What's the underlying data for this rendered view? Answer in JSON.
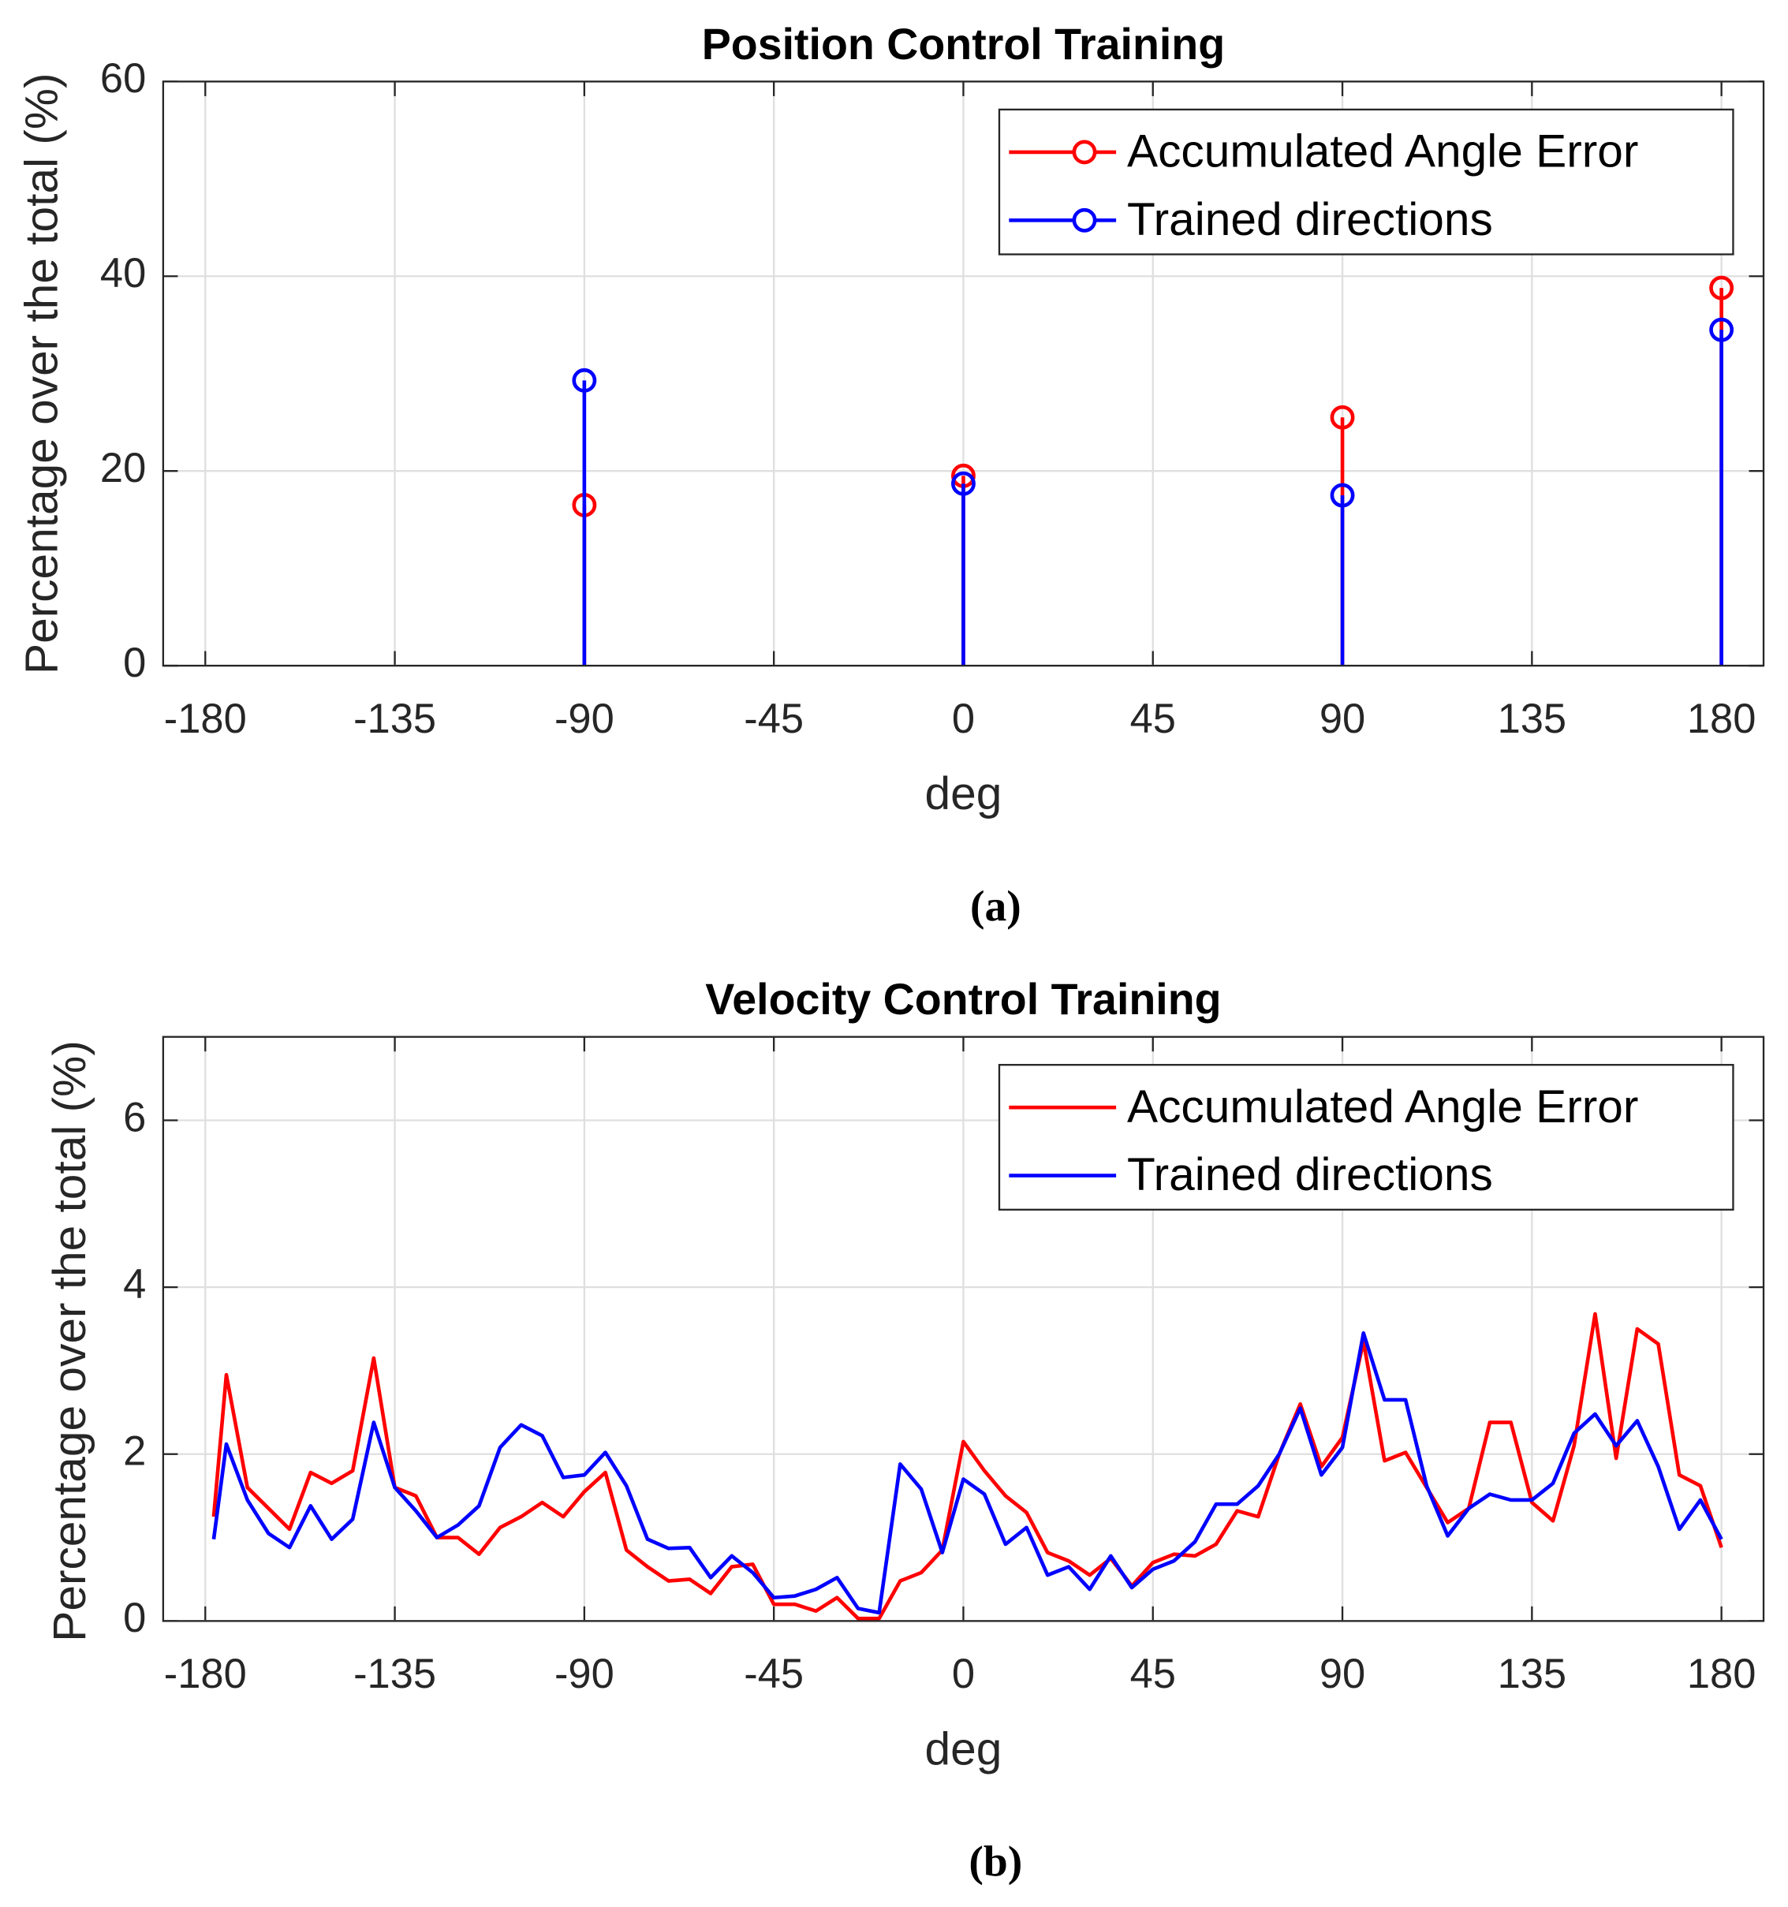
{
  "chart_data": [
    {
      "type": "stem",
      "title": "Position Control Training",
      "xlabel": "deg",
      "ylabel": "Percentage over the total (%)",
      "caption": "(a)",
      "x": [
        -90,
        0,
        90,
        180
      ],
      "series": [
        {
          "name": "Accumulated Angle Error",
          "color": "#ff0000",
          "values": [
            16.5,
            19.5,
            25.5,
            38.8
          ]
        },
        {
          "name": "Trained directions",
          "color": "#0000ff",
          "values": [
            29.3,
            18.7,
            17.5,
            34.5
          ]
        }
      ],
      "xlim": [
        -190,
        190
      ],
      "xticks": [
        -180,
        -135,
        -90,
        -45,
        0,
        45,
        90,
        135,
        180
      ],
      "ylim": [
        0,
        60
      ],
      "yticks": [
        0,
        20,
        40,
        60
      ],
      "grid": true,
      "legend": "northeast"
    },
    {
      "type": "line",
      "title": "Velocity Control Training",
      "xlabel": "deg",
      "ylabel": "Percentage over the total (%)",
      "caption": "(b)",
      "x": [
        -178,
        -175,
        -170,
        -165,
        -160,
        -155,
        -150,
        -145,
        -140,
        -135,
        -130,
        -125,
        -120,
        -115,
        -110,
        -105,
        -100,
        -95,
        -90,
        -85,
        -80,
        -75,
        -70,
        -65,
        -60,
        -55,
        -50,
        -45,
        -40,
        -35,
        -30,
        -25,
        -20,
        -15,
        -10,
        -5,
        0,
        5,
        10,
        15,
        20,
        25,
        30,
        35,
        40,
        45,
        50,
        55,
        60,
        65,
        70,
        75,
        80,
        85,
        90,
        95,
        100,
        105,
        110,
        115,
        120,
        125,
        130,
        135,
        140,
        145,
        150,
        155,
        160,
        165,
        170,
        175,
        180
      ],
      "series": [
        {
          "name": "Accumulated Angle Error",
          "color": "#ff0000",
          "values": [
            1.25,
            2.95,
            1.6,
            1.35,
            1.1,
            1.78,
            1.65,
            1.8,
            3.15,
            1.6,
            1.5,
            1.0,
            1.0,
            0.8,
            1.12,
            1.25,
            1.42,
            1.25,
            1.55,
            1.78,
            0.85,
            0.65,
            0.48,
            0.5,
            0.33,
            0.65,
            0.68,
            0.2,
            0.2,
            0.12,
            0.28,
            0.03,
            0.03,
            0.48,
            0.58,
            0.85,
            2.15,
            1.8,
            1.5,
            1.3,
            0.82,
            0.72,
            0.55,
            0.75,
            0.42,
            0.7,
            0.8,
            0.78,
            0.92,
            1.32,
            1.25,
            2.0,
            2.6,
            1.85,
            2.2,
            3.35,
            1.92,
            2.02,
            1.6,
            1.18,
            1.35,
            2.38,
            2.38,
            1.42,
            1.2,
            2.1,
            3.68,
            1.95,
            3.5,
            3.32,
            1.75,
            1.62,
            0.88
          ]
        },
        {
          "name": "Trained directions",
          "color": "#0000ff",
          "values": [
            0.98,
            2.12,
            1.45,
            1.05,
            0.88,
            1.38,
            0.98,
            1.22,
            2.38,
            1.6,
            1.32,
            1.0,
            1.15,
            1.38,
            2.08,
            2.35,
            2.22,
            1.72,
            1.75,
            2.02,
            1.62,
            0.98,
            0.87,
            0.88,
            0.52,
            0.78,
            0.58,
            0.28,
            0.3,
            0.38,
            0.52,
            0.15,
            0.1,
            1.88,
            1.58,
            0.82,
            1.7,
            1.52,
            0.92,
            1.12,
            0.55,
            0.65,
            0.38,
            0.78,
            0.4,
            0.62,
            0.72,
            0.95,
            1.4,
            1.4,
            1.62,
            2.0,
            2.55,
            1.75,
            2.08,
            3.45,
            2.65,
            2.65,
            1.62,
            1.02,
            1.35,
            1.52,
            1.45,
            1.45,
            1.65,
            2.25,
            2.48,
            2.1,
            2.4,
            1.85,
            1.1,
            1.45,
            0.98
          ]
        }
      ],
      "xlim": [
        -190,
        190
      ],
      "xticks": [
        -180,
        -135,
        -90,
        -45,
        0,
        45,
        90,
        135,
        180
      ],
      "ylim": [
        0,
        7
      ],
      "yticks": [
        0,
        2,
        4,
        6
      ],
      "grid": true,
      "legend": "northeast"
    }
  ]
}
